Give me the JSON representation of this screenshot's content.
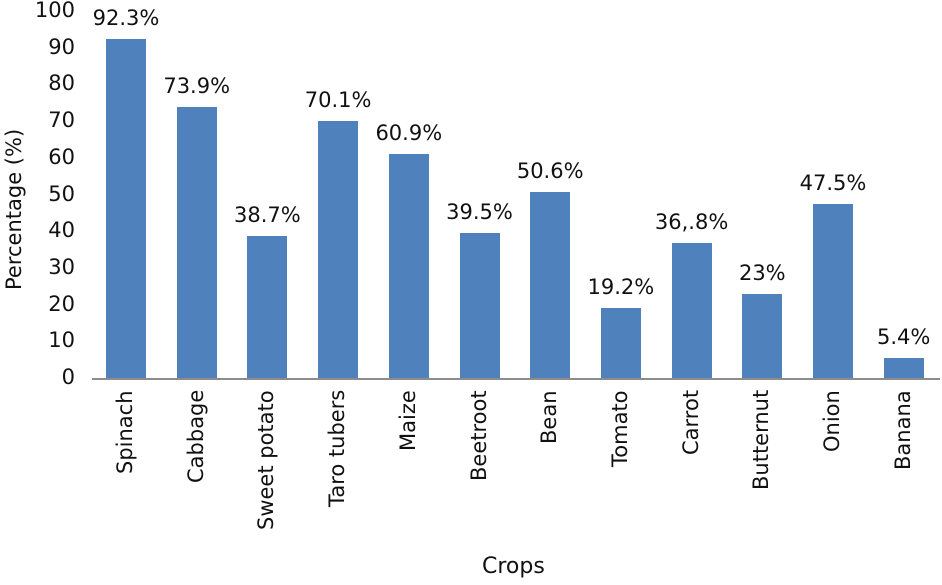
{
  "chart_data": {
    "type": "bar",
    "title": "",
    "xlabel": "Crops",
    "ylabel": "Percentage (%)",
    "ylim": [
      0,
      100
    ],
    "yticks": [
      0,
      10,
      20,
      30,
      40,
      50,
      60,
      70,
      80,
      90,
      100
    ],
    "grid": false,
    "legend": null,
    "bar_color": "#4f81bd",
    "categories": [
      "Spinach",
      "Cabbage",
      "Sweet potato",
      "Taro tubers",
      "Maize",
      "Beetroot",
      "Bean",
      "Tomato",
      "Carrot",
      "Butternut",
      "Onion",
      "Banana"
    ],
    "values": [
      92.3,
      73.9,
      38.7,
      70.1,
      60.9,
      39.5,
      50.6,
      19.2,
      36.8,
      23,
      47.5,
      5.4
    ],
    "data_labels": [
      "92.3%",
      "73.9%",
      "38.7%",
      "70.1%",
      "60.9%",
      "39.5%",
      "50.6%",
      "19.2%",
      "36,.8%",
      "23%",
      "47.5%",
      "5.4%"
    ]
  }
}
